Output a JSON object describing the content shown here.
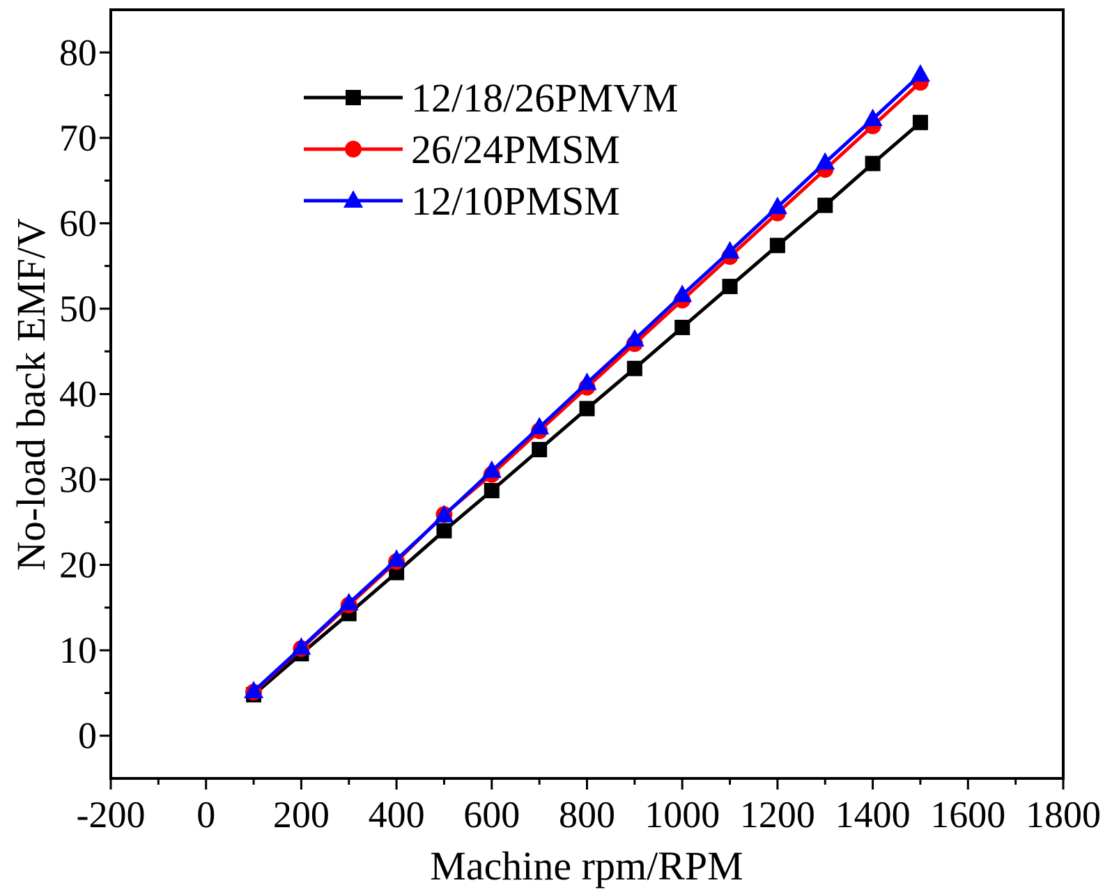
{
  "chart_data": {
    "type": "line",
    "title": "",
    "xlabel": "Machine rpm/RPM",
    "ylabel": "No-load back EMF/V",
    "xlim": [
      -200,
      1800
    ],
    "ylim": [
      -5,
      85
    ],
    "x_ticks": [
      -200,
      0,
      200,
      400,
      600,
      800,
      1000,
      1200,
      1400,
      1600,
      1800
    ],
    "y_ticks": [
      0,
      10,
      20,
      30,
      40,
      50,
      60,
      70,
      80
    ],
    "x_tick_labels": [
      "-200",
      "0",
      "200",
      "400",
      "600",
      "800",
      "1000",
      "1200",
      "1400",
      "1600",
      "1800"
    ],
    "y_tick_labels": [
      "0",
      "10",
      "20",
      "30",
      "40",
      "50",
      "60",
      "70",
      "80"
    ],
    "legend_position": "top-left",
    "x": [
      100,
      200,
      300,
      400,
      500,
      600,
      700,
      800,
      900,
      1000,
      1100,
      1200,
      1300,
      1400,
      1500
    ],
    "series": [
      {
        "name": "12/18/26PMVM",
        "color": "#000000",
        "marker": "square",
        "values": [
          4.8,
          9.6,
          14.3,
          19.1,
          24.0,
          28.7,
          33.5,
          38.3,
          43.0,
          47.8,
          52.6,
          57.4,
          62.1,
          67.0,
          71.8
        ]
      },
      {
        "name": "26/24PMSM",
        "color": "#ff0000",
        "marker": "circle",
        "values": [
          5.1,
          10.2,
          15.3,
          20.4,
          25.9,
          30.6,
          35.7,
          40.8,
          45.9,
          51.0,
          56.1,
          61.2,
          66.3,
          71.4,
          76.5
        ]
      },
      {
        "name": "12/10PMSM",
        "color": "#0000ff",
        "marker": "triangle",
        "values": [
          5.2,
          10.3,
          15.5,
          20.6,
          25.8,
          31.0,
          36.1,
          41.3,
          46.4,
          51.6,
          56.7,
          61.9,
          67.1,
          72.2,
          77.4
        ]
      }
    ]
  }
}
